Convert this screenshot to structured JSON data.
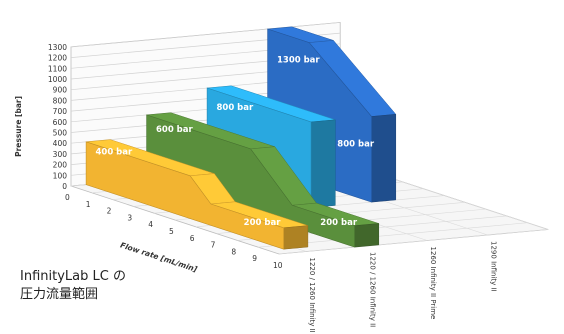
{
  "chart_data": {
    "type": "3d-area",
    "ylabel": "Pressure [bar]",
    "xlabel": "Flow rate [mL/min]",
    "y_ticks": [
      "0",
      "100",
      "200",
      "300",
      "400",
      "500",
      "600",
      "700",
      "800",
      "900",
      "1000",
      "1100",
      "1200",
      "1300"
    ],
    "x_ticks": [
      "0",
      "1",
      "2",
      "3",
      "4",
      "5",
      "6",
      "7",
      "8",
      "9",
      "10"
    ],
    "ylim": [
      0,
      1300
    ],
    "xlim": [
      0,
      10
    ],
    "series": [
      {
        "name": "1220 / 1260 Infinity II VL",
        "color": "#f2b431",
        "x": [
          0,
          5,
          6,
          9.5
        ],
        "values": [
          400,
          400,
          200,
          200
        ],
        "labels": [
          "400 bar",
          "200 bar"
        ]
      },
      {
        "name": "1220 / 1260 Infinity II",
        "color": "#5a8f3c",
        "x": [
          0,
          5,
          7,
          10
        ],
        "values": [
          600,
          600,
          200,
          200
        ],
        "labels": [
          "600 bar",
          "200 bar"
        ]
      },
      {
        "name": "1260 Infinity II Prime",
        "color": "#29a8e0",
        "x": [
          0,
          5
        ],
        "values": [
          800,
          800
        ],
        "labels": [
          "800 bar"
        ]
      },
      {
        "name": "1290 Infinity II",
        "color": "#2b6cc4",
        "x": [
          0,
          2,
          5
        ],
        "values": [
          1300,
          1300,
          800
        ],
        "labels": [
          "1300 bar",
          "800 bar"
        ]
      }
    ]
  },
  "caption": {
    "line1": "InfinityLab LC の",
    "line2": "圧力流量範囲"
  }
}
